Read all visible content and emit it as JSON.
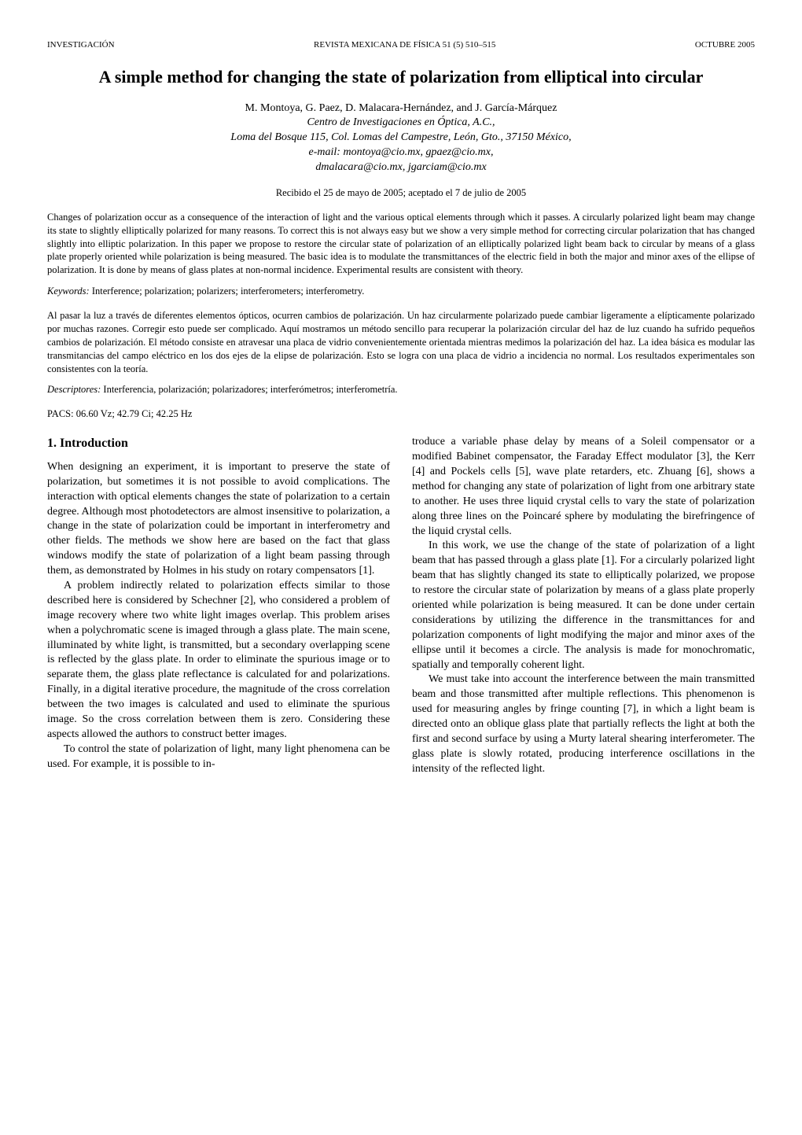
{
  "header": {
    "left": "INVESTIGACIÓN",
    "center": "REVISTA MEXICANA DE FÍSICA 51 (5) 510–515",
    "right": "OCTUBRE 2005"
  },
  "title": "A simple method for changing the state of polarization from elliptical into circular",
  "authors": "M. Montoya, G. Paez, D. Malacara-Hernández, and J. García-Márquez",
  "affiliation_line1": "Centro de Investigaciones en Óptica, A.C.,",
  "affiliation_line2": "Loma del Bosque 115, Col. Lomas del Campestre, León, Gto., 37150 México,",
  "emails_line1": "e-mail: montoya@cio.mx, gpaez@cio.mx,",
  "emails_line2": "dmalacara@cio.mx, jgarciam@cio.mx",
  "dates": "Recibido el 25 de mayo de 2005; aceptado el 7 de julio de 2005",
  "abstract": "Changes of polarization occur as a consequence of the interaction of light and the various optical elements through which it passes. A circularly polarized light beam may change its state to slightly elliptically polarized for many reasons. To correct this is not always easy but we show a very simple method for correcting circular polarization that has changed slightly into elliptic polarization. In this paper we propose to restore the circular state of polarization of an elliptically polarized light beam back to circular by means of a glass plate properly oriented while polarization is being measured. The basic idea is to modulate the transmittances of the electric field in both the major and minor axes of the ellipse of polarization. It is done by means of glass plates at non-normal incidence. Experimental results are consistent with theory.",
  "keywords_label": "Keywords:",
  "keywords_text": " Interference; polarization; polarizers; interferometers; interferometry.",
  "spanish_abstract": "Al pasar la luz a través de diferentes elementos ópticos, ocurren cambios de polarización. Un haz circularmente polarizado puede cambiar ligeramente a elípticamente polarizado por muchas razones. Corregir esto puede ser complicado. Aquí mostramos un método sencillo para recuperar la polarización circular del haz de luz cuando ha sufrido pequeños cambios de polarización. El método consiste en atravesar una placa de vidrio convenientemente orientada mientras medimos la polarización del haz. La idea básica es modular las transmitancias del campo eléctrico en los dos ejes de la elipse de polarización. Esto se logra con una placa de vidrio a incidencia no normal. Los resultados experimentales son consistentes con la teoría.",
  "descriptores_label": "Descriptores:",
  "descriptores_text": " Interferencia, polarización; polarizadores; interferómetros; interferometría.",
  "pacs": "PACS: 06.60 Vz; 42.79 Ci; 42.25 Hz",
  "section1_heading": "1.   Introduction",
  "col_left": {
    "p1": "When designing an experiment, it is important to preserve the state of polarization, but sometimes it is not possible to avoid complications. The interaction with optical elements changes the state of polarization to a certain degree. Although most photodetectors are almost insensitive to polarization, a change in the state of polarization could be important in interferometry and other fields. The methods we show here are based on the fact that glass windows modify the state of polarization of a light beam passing through them, as demonstrated by Holmes in his study on rotary compensators [1].",
    "p2": "A problem indirectly related to polarization effects similar to those described here is considered by Schechner [2], who considered a problem of image recovery where two white light images overlap. This problem arises when a polychromatic scene is imaged through a glass plate. The main scene, illuminated by white light, is transmitted, but a secondary overlapping scene is reflected by the glass plate. In order to eliminate the spurious image or to separate them, the glass plate reflectance is calculated for   and   polarizations. Finally, in a digital iterative procedure, the magnitude of the cross correlation between the two images is calculated and used to eliminate the spurious image. So the cross correlation between them is zero. Considering these aspects allowed the authors to construct better images.",
    "p3": "To control the state of polarization of light, many light phenomena can be used. For example, it is possible to in-"
  },
  "col_right": {
    "p1": "troduce a variable phase delay by means of a Soleil compensator or a modified Babinet compensator, the Faraday Effect modulator [3], the Kerr [4] and Pockels cells [5], wave plate retarders, etc. Zhuang [6], shows a method for changing any state of polarization of light from one arbitrary state to another. He uses three liquid crystal cells to vary the state of polarization along three lines on the Poincaré sphere by modulating the birefringence of the liquid crystal cells.",
    "p2": "In this work, we use the change of the state of polarization of a light beam that has passed through a glass plate [1]. For a circularly polarized light beam that has slightly changed its state to elliptically polarized, we propose to restore the circular state of polarization by means of a glass plate properly oriented while polarization is being measured. It can be done under certain considerations by utilizing the difference in the transmittances for   and   polarization components of light modifying the major and minor axes of the ellipse until it becomes a circle. The analysis is made for monochromatic, spatially and temporally coherent light.",
    "p3": "We must take into account the interference between the main transmitted beam and those transmitted after multiple reflections. This phenomenon is used for measuring angles by fringe counting [7], in which a light beam is directed onto an oblique glass plate that partially reflects the light at both the first and second surface by using a Murty lateral shearing interferometer. The glass plate is slowly rotated, producing interference oscillations in the intensity of the reflected light."
  }
}
